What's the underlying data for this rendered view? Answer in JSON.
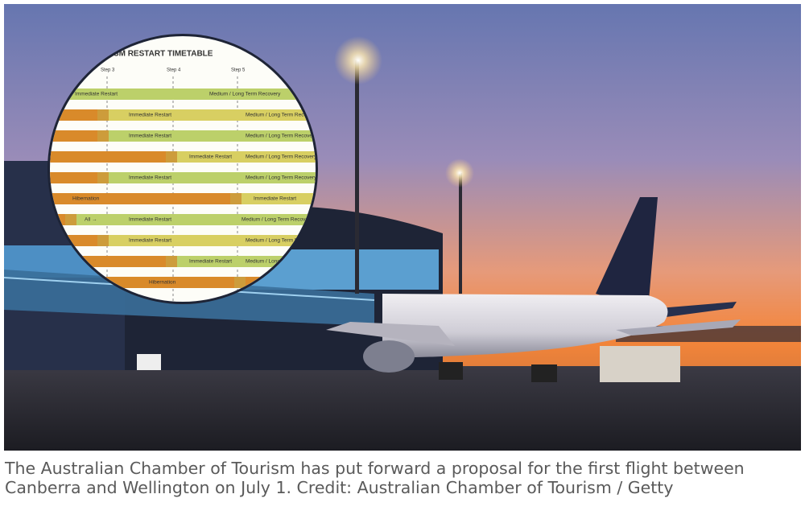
{
  "inset": {
    "title": "D TOURISM RESTART TIMETABLE",
    "steps": [
      "Step 3",
      "Step 4",
      "Step 5"
    ],
    "rows": [
      [
        "Immediate Restart",
        "Medium / Long Term Recovery"
      ],
      [
        "Immediate Restart",
        "Medium / Long Term Recovery"
      ],
      [
        "Immediate Restart",
        "Medium / Long Term Recovery"
      ],
      [
        "Immediate Restart",
        "Medium / Long Term Recovery"
      ],
      [
        "Immediate Restart",
        "Medium / Long Term Recovery"
      ],
      [
        "Hibernation",
        "Immediate Restart"
      ],
      [
        "All →",
        "Immediate Restart",
        "Medium / Long Term Recovery"
      ],
      [
        "Immediate Restart",
        "Medium / Long Term Recovery"
      ],
      [
        "Immediate Restart",
        "Medium / Long Term Recovery"
      ],
      [
        "Hibernation"
      ]
    ]
  },
  "caption": "The Australian Chamber of Tourism has put forward a proposal for the first flight between Canberra and Wellington on July 1. Credit: Australian Chamber of Tourism / Getty"
}
